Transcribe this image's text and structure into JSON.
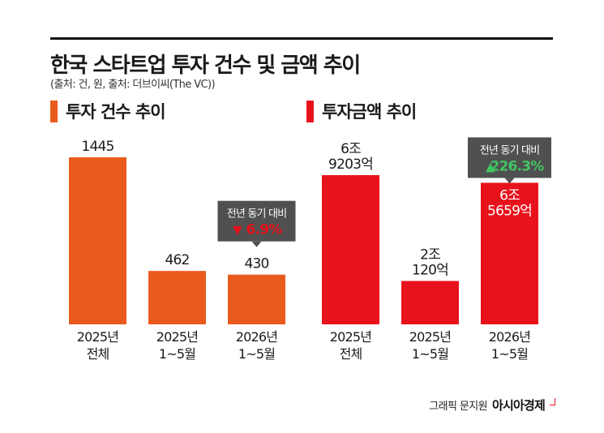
{
  "header": {
    "title": "한국 스타트업 투자 건수 및 금액 추이",
    "subtitle": "(출처: 건, 원, 출처: 더브이씨(The VC))"
  },
  "footer": {
    "credit": "그래픽 문지원",
    "brand": "아시아경제"
  },
  "colors": {
    "count_bar": "#e85b1c",
    "amount_bar": "#e8121c",
    "callout_bg": "#505050",
    "down": "#e8121c",
    "up": "#41c463"
  },
  "chart_data": [
    {
      "type": "bar",
      "title": "투자 건수 추이",
      "categories": [
        "2025년 전체",
        "2025년 1~5월",
        "2026년 1~5월"
      ],
      "category_lines": [
        [
          "2025년",
          "전체"
        ],
        [
          "2025년",
          "1~5월"
        ],
        [
          "2026년",
          "1~5월"
        ]
      ],
      "values": [
        1445,
        462,
        430
      ],
      "value_labels": [
        [
          "1445"
        ],
        [
          "462"
        ],
        [
          "430"
        ]
      ],
      "value_label_inside": [
        false,
        false,
        false
      ],
      "callout": {
        "category_index": 2,
        "title": "전년 동기 대비",
        "direction": "down",
        "symbol": "▼",
        "value": "6.9%"
      },
      "color": "#e85b1c"
    },
    {
      "type": "bar",
      "title": "투자금액 추이",
      "categories": [
        "2025년 전체",
        "2025년 1~5월",
        "2026년 1~5월"
      ],
      "category_lines": [
        [
          "2025년",
          "전체"
        ],
        [
          "2025년",
          "1~5월"
        ],
        [
          "2026년",
          "1~5월"
        ]
      ],
      "values": [
        69203,
        20120,
        65659
      ],
      "value_unit": "억원",
      "value_labels": [
        [
          "6조",
          "9203억"
        ],
        [
          "2조",
          "120억"
        ],
        [
          "6조",
          "5659억"
        ]
      ],
      "value_label_inside": [
        false,
        false,
        true
      ],
      "callout": {
        "category_index": 2,
        "title": "전년 동기 대비",
        "direction": "up",
        "symbol": "▲",
        "value": "226.3%"
      },
      "color": "#e8121c"
    }
  ]
}
